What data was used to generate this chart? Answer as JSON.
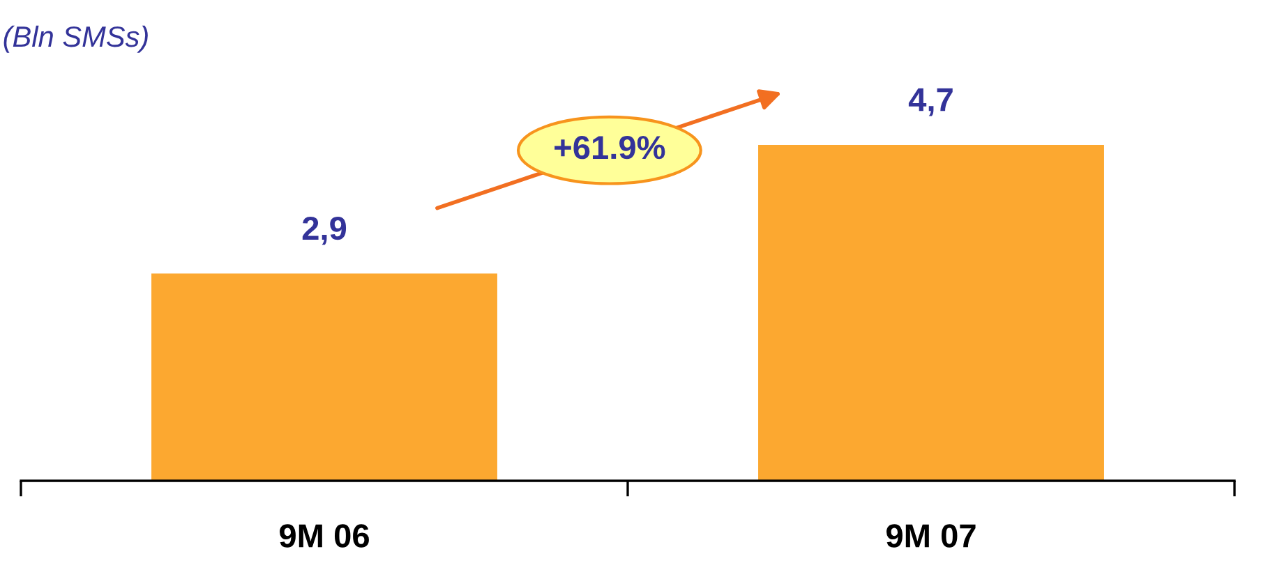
{
  "chart_data": {
    "type": "bar",
    "ylabel": "(Bln SMSs)",
    "categories": [
      "9M 06",
      "9M 07"
    ],
    "values": [
      2.9,
      4.7
    ],
    "value_labels": [
      "2,9",
      "4,7"
    ],
    "color": "#fca830",
    "annotations": [
      "+61.9%"
    ],
    "grid": false,
    "legend": false
  }
}
